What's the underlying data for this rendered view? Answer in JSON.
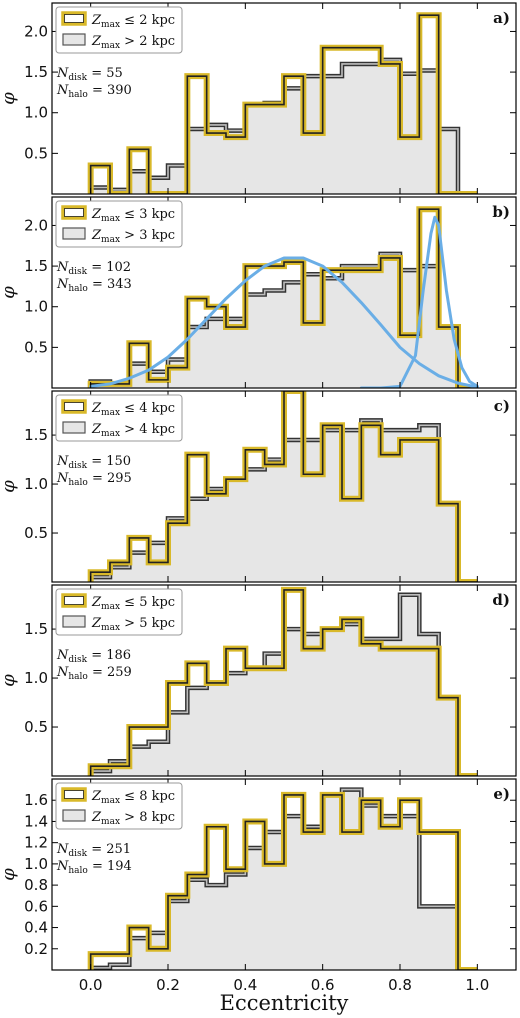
{
  "figure": {
    "xlabel": "Eccentricity",
    "ylabel": "φ",
    "xticks": [
      0.0,
      0.2,
      0.4,
      0.6,
      0.8,
      1.0
    ],
    "xtick_labels": [
      "0.0",
      "0.2",
      "0.4",
      "0.6",
      "0.8",
      "1.0"
    ],
    "xlim": [
      -0.1,
      1.1
    ],
    "colors": {
      "disk_edge": "#d9b92a",
      "disk_inner": "#222222",
      "halo_fill": "#e6e6e6",
      "halo_edge": "#333333",
      "fit_curve": "#6aaee6"
    }
  },
  "chart_data": [
    {
      "type": "histogram-step",
      "panel": "a)",
      "legend": [
        "Z_max ≤ 2 kpc",
        "Z_max > 2 kpc"
      ],
      "legend_placement": "top-left",
      "annotation": {
        "n_disk": "N_disk = 55",
        "n_halo": "N_halo = 390"
      },
      "ylim": [
        0,
        2.35
      ],
      "yticks": [
        0.5,
        1.0,
        1.5,
        2.0
      ],
      "ytick_labels": [
        "0.5",
        "1.0",
        "1.5",
        "2.0"
      ],
      "bin_edges": [
        0.0,
        0.05,
        0.1,
        0.15,
        0.2,
        0.25,
        0.3,
        0.35,
        0.4,
        0.45,
        0.5,
        0.55,
        0.6,
        0.65,
        0.7,
        0.75,
        0.8,
        0.85,
        0.9,
        0.95,
        1.0
      ],
      "series": [
        {
          "name": "Z_max > 2 kpc",
          "role": "halo",
          "values": [
            0.08,
            0.05,
            0.28,
            0.2,
            0.35,
            0.8,
            0.85,
            0.78,
            1.1,
            1.12,
            1.3,
            1.45,
            1.45,
            1.6,
            1.6,
            1.65,
            1.48,
            1.52,
            0.8,
            0.0
          ]
        },
        {
          "name": "Z_max ≤ 2 kpc",
          "role": "disk",
          "values": [
            0.35,
            0.0,
            0.55,
            0.0,
            0.0,
            1.45,
            0.75,
            0.7,
            1.1,
            1.1,
            1.45,
            0.75,
            1.8,
            1.8,
            1.8,
            1.6,
            0.7,
            2.2,
            0.0,
            0.0
          ]
        }
      ]
    },
    {
      "type": "histogram-step",
      "panel": "b)",
      "legend": [
        "Z_max ≤ 3 kpc",
        "Z_max > 3 kpc"
      ],
      "legend_placement": "top-left",
      "annotation": {
        "n_disk": "N_disk = 102",
        "n_halo": "N_halo = 343"
      },
      "ylim": [
        0,
        2.35
      ],
      "yticks": [
        0.5,
        1.0,
        1.5,
        2.0
      ],
      "ytick_labels": [
        "0.5",
        "1.0",
        "1.5",
        "2.0"
      ],
      "bin_edges": [
        0.0,
        0.05,
        0.1,
        0.15,
        0.2,
        0.25,
        0.3,
        0.35,
        0.4,
        0.45,
        0.5,
        0.55,
        0.6,
        0.65,
        0.7,
        0.75,
        0.8,
        0.85,
        0.9,
        0.95,
        1.0
      ],
      "series": [
        {
          "name": "Z_max > 3 kpc",
          "role": "halo",
          "values": [
            0.08,
            0.05,
            0.3,
            0.2,
            0.35,
            0.75,
            0.85,
            0.85,
            1.15,
            1.2,
            1.3,
            1.4,
            1.35,
            1.5,
            1.5,
            1.65,
            1.45,
            1.5,
            0.75,
            0.0
          ]
        },
        {
          "name": "Z_max ≤ 3 kpc",
          "role": "disk",
          "values": [
            0.05,
            0.05,
            0.55,
            0.1,
            0.25,
            1.1,
            1.0,
            0.75,
            1.5,
            1.5,
            1.55,
            0.8,
            1.45,
            1.45,
            1.45,
            1.6,
            0.65,
            2.2,
            0.75,
            0.0
          ]
        }
      ],
      "fit_curves": [
        {
          "x": [
            0.0,
            0.05,
            0.1,
            0.15,
            0.2,
            0.25,
            0.3,
            0.35,
            0.4,
            0.45,
            0.5,
            0.55,
            0.6,
            0.65,
            0.7,
            0.75,
            0.8,
            0.85,
            0.9,
            0.95,
            1.0
          ],
          "y": [
            0.02,
            0.05,
            0.12,
            0.22,
            0.38,
            0.6,
            0.85,
            1.1,
            1.32,
            1.5,
            1.6,
            1.6,
            1.5,
            1.3,
            1.05,
            0.78,
            0.5,
            0.3,
            0.15,
            0.06,
            0.01
          ]
        },
        {
          "x": [
            0.7,
            0.75,
            0.8,
            0.84,
            0.86,
            0.88,
            0.89,
            0.9,
            0.92,
            0.94,
            0.96,
            0.98,
            1.0
          ],
          "y": [
            0.0,
            0.0,
            0.02,
            0.4,
            1.2,
            1.9,
            2.1,
            2.0,
            1.2,
            0.6,
            0.25,
            0.08,
            0.02
          ]
        }
      ]
    },
    {
      "type": "histogram-step",
      "panel": "c)",
      "legend": [
        "Z_max ≤ 4 kpc",
        "Z_max > 4 kpc"
      ],
      "legend_placement": "top-left",
      "annotation": {
        "n_disk": "N_disk = 150",
        "n_halo": "N_halo = 295"
      },
      "ylim": [
        0,
        1.95
      ],
      "yticks": [
        0.5,
        1.0,
        1.5
      ],
      "ytick_labels": [
        "0.5",
        "1.0",
        "1.5"
      ],
      "bin_edges": [
        0.0,
        0.05,
        0.1,
        0.15,
        0.2,
        0.25,
        0.3,
        0.35,
        0.4,
        0.45,
        0.5,
        0.55,
        0.6,
        0.65,
        0.7,
        0.75,
        0.8,
        0.85,
        0.9,
        0.95,
        1.0
      ],
      "series": [
        {
          "name": "Z_max > 4 kpc",
          "role": "halo",
          "values": [
            0.05,
            0.15,
            0.3,
            0.4,
            0.65,
            0.85,
            0.95,
            1.05,
            1.15,
            1.25,
            1.45,
            1.45,
            1.55,
            1.55,
            1.65,
            1.55,
            1.55,
            1.6,
            0.8,
            0.0
          ]
        },
        {
          "name": "Z_max ≤ 4 kpc",
          "role": "disk",
          "values": [
            0.1,
            0.2,
            0.45,
            0.2,
            0.6,
            1.3,
            0.9,
            1.05,
            1.35,
            1.2,
            1.95,
            1.1,
            1.6,
            0.85,
            1.6,
            1.3,
            1.45,
            1.45,
            0.8,
            0.0
          ]
        }
      ]
    },
    {
      "type": "histogram-step",
      "panel": "d)",
      "legend": [
        "Z_max ≤ 5 kpc",
        "Z_max > 5 kpc"
      ],
      "legend_placement": "top-left",
      "annotation": {
        "n_disk": "N_disk = 186",
        "n_halo": "N_halo = 259"
      },
      "ylim": [
        0,
        1.95
      ],
      "yticks": [
        0.5,
        1.0,
        1.5
      ],
      "ytick_labels": [
        "0.5",
        "1.0",
        "1.5"
      ],
      "bin_edges": [
        0.0,
        0.05,
        0.1,
        0.15,
        0.2,
        0.25,
        0.3,
        0.35,
        0.4,
        0.45,
        0.5,
        0.55,
        0.6,
        0.65,
        0.7,
        0.75,
        0.8,
        0.85,
        0.9,
        0.95,
        1.0
      ],
      "series": [
        {
          "name": "Z_max > 5 kpc",
          "role": "halo",
          "values": [
            0.05,
            0.15,
            0.3,
            0.35,
            0.65,
            0.9,
            0.95,
            1.05,
            1.1,
            1.25,
            1.5,
            1.45,
            1.5,
            1.55,
            1.4,
            1.4,
            1.85,
            1.45,
            0.8,
            0.0
          ]
        },
        {
          "name": "Z_max ≤ 5 kpc",
          "role": "disk",
          "values": [
            0.1,
            0.1,
            0.5,
            0.5,
            0.95,
            1.15,
            0.95,
            1.3,
            1.1,
            1.1,
            1.9,
            1.3,
            1.5,
            1.6,
            1.35,
            1.3,
            1.3,
            1.3,
            0.8,
            0.0
          ]
        }
      ]
    },
    {
      "type": "histogram-step",
      "panel": "e)",
      "legend": [
        "Z_max ≤ 8 kpc",
        "Z_max > 8 kpc"
      ],
      "legend_placement": "top-left",
      "annotation": {
        "n_disk": "N_disk = 251",
        "n_halo": "N_halo = 194"
      },
      "ylim": [
        0,
        1.8
      ],
      "yticks": [
        0.2,
        0.4,
        0.6,
        0.8,
        1.0,
        1.2,
        1.4,
        1.6
      ],
      "ytick_labels": [
        "0.2",
        "0.4",
        "0.6",
        "0.8",
        "1.0",
        "1.2",
        "1.4",
        "1.6"
      ],
      "bin_edges": [
        0.0,
        0.05,
        0.1,
        0.15,
        0.2,
        0.25,
        0.3,
        0.35,
        0.4,
        0.45,
        0.5,
        0.55,
        0.6,
        0.65,
        0.7,
        0.75,
        0.8,
        0.85,
        0.9,
        0.95,
        1.0
      ],
      "series": [
        {
          "name": "Z_max > 8 kpc",
          "role": "halo",
          "values": [
            0.02,
            0.05,
            0.3,
            0.35,
            0.65,
            0.85,
            0.8,
            0.9,
            1.15,
            1.3,
            1.45,
            1.35,
            1.65,
            1.7,
            1.55,
            1.45,
            1.45,
            0.6,
            0.6,
            0.0
          ]
        },
        {
          "name": "Z_max ≤ 8 kpc",
          "role": "disk",
          "values": [
            0.15,
            0.15,
            0.4,
            0.2,
            0.7,
            0.9,
            1.35,
            0.95,
            1.4,
            1.0,
            1.65,
            1.3,
            1.65,
            1.3,
            1.6,
            1.35,
            1.6,
            1.3,
            1.3,
            0.0
          ]
        }
      ]
    }
  ]
}
